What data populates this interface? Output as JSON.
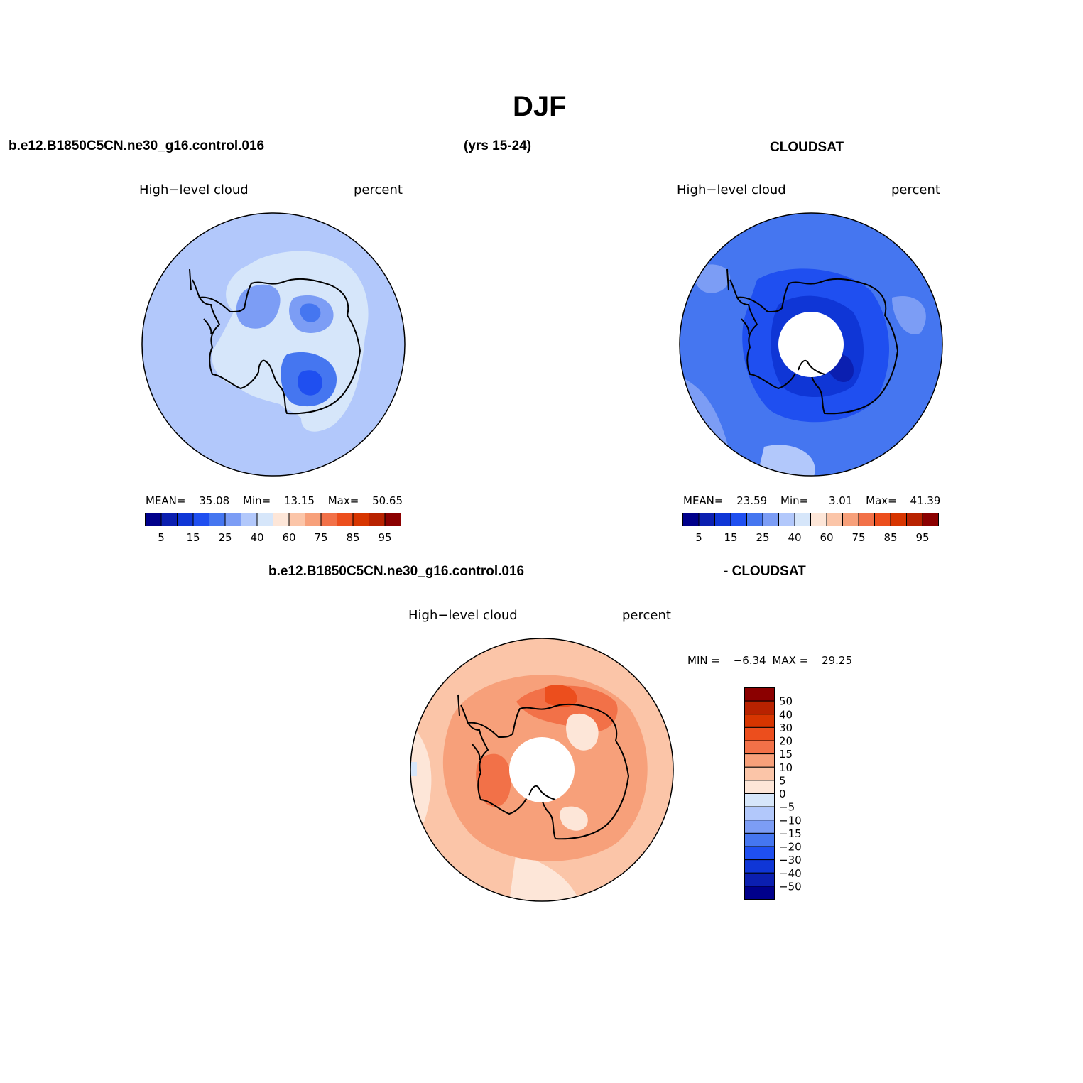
{
  "page": {
    "title": "DJF",
    "case_name": "b.e12.B1850C5CN.ne30_g16.control.016",
    "years": "(yrs 15-24)",
    "obs_name": "CLOUDSAT",
    "diff_case": "b.e12.B1850C5CN.ne30_g16.control.016",
    "diff_obs": "- CLOUDSAT"
  },
  "panels": {
    "model": {
      "variable": "High−level cloud",
      "units": "percent",
      "mean_label": "MEAN=",
      "mean": "35.08",
      "min_label": "Min=",
      "min": "13.15",
      "max_label": "Max=",
      "max": "50.65"
    },
    "obs": {
      "variable": "High−level cloud",
      "units": "percent",
      "mean_label": "MEAN=",
      "mean": "23.59",
      "min_label": "Min=",
      "min": "3.01",
      "max_label": "Max=",
      "max": "41.39"
    },
    "diff": {
      "variable": "High−level cloud",
      "units": "percent",
      "min_label": "MIN =",
      "min": "−6.34",
      "max_label": "MAX =",
      "max": "29.25"
    }
  },
  "colorbar_abs": {
    "colors": [
      "#00008b",
      "#0b1fb0",
      "#0f36d6",
      "#1f4ff0",
      "#4576f0",
      "#7c9df5",
      "#b2c8fb",
      "#d6e6fa",
      "#fde6d8",
      "#fbc5a8",
      "#f7a07a",
      "#f27148",
      "#ec4e1d",
      "#d73500",
      "#b82200",
      "#8b0000"
    ],
    "tick_labels": [
      "5",
      "15",
      "25",
      "40",
      "60",
      "75",
      "85",
      "95"
    ]
  },
  "colorbar_diff": {
    "colors": [
      "#8b0000",
      "#b82200",
      "#d73500",
      "#ec4e1d",
      "#f27148",
      "#f7a07a",
      "#fbc5a8",
      "#fde6d8",
      "#d6e6fa",
      "#b2c8fb",
      "#7c9df5",
      "#4576f0",
      "#1f4ff0",
      "#0f36d6",
      "#0b1fb0",
      "#00008b"
    ],
    "tick_labels": [
      "50",
      "40",
      "30",
      "20",
      "15",
      "10",
      "5",
      "0",
      "−5",
      "−10",
      "−15",
      "−20",
      "−30",
      "−40",
      "−50"
    ]
  },
  "colors": {
    "model_background": "#b2c8fb",
    "obs_background": "#4576f0",
    "diff_background": "#fbc5a8"
  }
}
